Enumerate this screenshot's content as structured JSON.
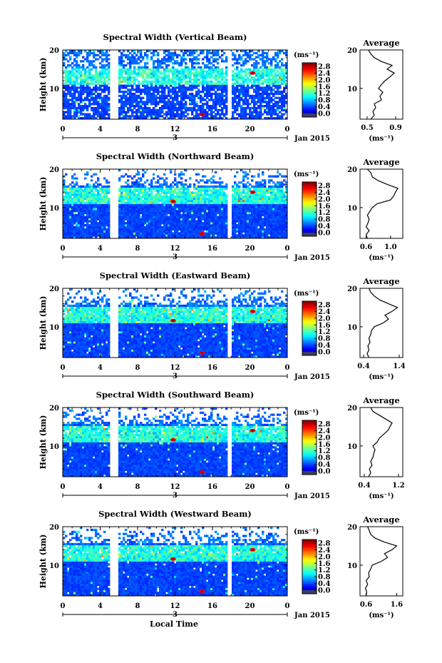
{
  "figure": {
    "xlabel": "Local Time"
  },
  "chart_data": [
    {
      "type": "heatmap",
      "title": "Spectral Width (Vertical Beam)",
      "ylabel": "Height (km)",
      "x_ticks": [
        "0",
        "4",
        "8",
        "12",
        "16",
        "20",
        "0"
      ],
      "y_ticks": [
        "10",
        "20"
      ],
      "xlim": [
        0,
        24
      ],
      "ylim": [
        2,
        20
      ],
      "date_day": "3",
      "date_label": "Jan 2015",
      "colorbar": {
        "unit": "(ms⁻¹)",
        "ticks": [
          "0.0",
          "0.4",
          "0.8",
          "1.2",
          "1.6",
          "2.0",
          "2.4",
          "2.8"
        ],
        "range": [
          0,
          3.0
        ]
      },
      "data_gaps_hours": [
        [
          5.0,
          5.9
        ],
        [
          17.6,
          18.1
        ]
      ],
      "profile": {
        "title": "Average",
        "xlabel": "(ms⁻¹)",
        "x_ticks": [
          "0.5",
          "0.9"
        ],
        "xlim": [
          0.4,
          1.0
        ],
        "heights": [
          2,
          3,
          4,
          5,
          6,
          7,
          8,
          9,
          10,
          11,
          12,
          13,
          14,
          15,
          16,
          17,
          18,
          19,
          20
        ],
        "values": [
          0.55,
          0.6,
          0.58,
          0.62,
          0.6,
          0.7,
          0.68,
          0.72,
          0.66,
          0.7,
          0.75,
          0.82,
          0.88,
          0.78,
          0.85,
          0.7,
          0.6,
          0.55,
          0.52
        ]
      }
    },
    {
      "type": "heatmap",
      "title": "Spectral Width (Northward Beam)",
      "ylabel": "Height (km)",
      "x_ticks": [
        "0",
        "4",
        "8",
        "12",
        "16",
        "20",
        "0"
      ],
      "y_ticks": [
        "10",
        "20"
      ],
      "xlim": [
        0,
        24
      ],
      "ylim": [
        2,
        20
      ],
      "date_day": "3",
      "date_label": "Jan 2015",
      "colorbar": {
        "unit": "(ms⁻¹)",
        "ticks": [
          "0.0",
          "0.4",
          "0.8",
          "1.2",
          "1.6",
          "2.0",
          "2.4",
          "2.8"
        ],
        "range": [
          0,
          3.0
        ]
      },
      "data_gaps_hours": [
        [
          5.0,
          5.9
        ],
        [
          17.6,
          18.1
        ]
      ],
      "profile": {
        "title": "Average",
        "xlabel": "(ms⁻¹)",
        "x_ticks": [
          "0.6",
          "1.0"
        ],
        "xlim": [
          0.5,
          1.2
        ],
        "heights": [
          2,
          3,
          4,
          5,
          6,
          7,
          8,
          9,
          10,
          11,
          12,
          13,
          14,
          15,
          16,
          17,
          18,
          19,
          20
        ],
        "values": [
          0.62,
          0.6,
          0.65,
          0.6,
          0.63,
          0.65,
          0.62,
          0.66,
          0.7,
          0.78,
          1.0,
          1.05,
          1.08,
          1.12,
          0.95,
          0.8,
          0.7,
          0.68,
          0.62
        ]
      }
    },
    {
      "type": "heatmap",
      "title": "Spectral Width (Eastward Beam)",
      "ylabel": "Height (km)",
      "x_ticks": [
        "0",
        "4",
        "8",
        "12",
        "16",
        "20",
        "0"
      ],
      "y_ticks": [
        "10",
        "20"
      ],
      "xlim": [
        0,
        24
      ],
      "ylim": [
        2,
        20
      ],
      "date_day": "3",
      "date_label": "Jan 2015",
      "colorbar": {
        "unit": "(ms⁻¹)",
        "ticks": [
          "0.0",
          "0.4",
          "0.8",
          "1.2",
          "1.6",
          "2.0",
          "2.4",
          "2.8"
        ],
        "range": [
          0,
          3.0
        ]
      },
      "data_gaps_hours": [
        [
          5.0,
          5.9
        ],
        [
          17.6,
          18.1
        ]
      ],
      "profile": {
        "title": "Average",
        "xlabel": "(ms⁻¹)",
        "x_ticks": [
          "0.4",
          "1.4"
        ],
        "xlim": [
          0.3,
          1.5
        ],
        "heights": [
          2,
          3,
          4,
          5,
          6,
          7,
          8,
          9,
          10,
          11,
          12,
          13,
          14,
          15,
          16,
          17,
          18,
          19,
          20
        ],
        "values": [
          0.55,
          0.5,
          0.55,
          0.52,
          0.58,
          0.55,
          0.6,
          0.62,
          0.7,
          0.95,
          1.1,
          1.0,
          1.2,
          1.35,
          1.1,
          0.85,
          0.7,
          0.6,
          0.55
        ]
      }
    },
    {
      "type": "heatmap",
      "title": "Spectral Width (Southward Beam)",
      "ylabel": "Height (km)",
      "x_ticks": [
        "0",
        "4",
        "8",
        "12",
        "16",
        "20",
        "0"
      ],
      "y_ticks": [
        "10",
        "20"
      ],
      "xlim": [
        0,
        24
      ],
      "ylim": [
        2,
        20
      ],
      "date_day": "3",
      "date_label": "Jan 2015",
      "colorbar": {
        "unit": "(ms⁻¹)",
        "ticks": [
          "0.0",
          "0.4",
          "0.8",
          "1.2",
          "1.6",
          "2.0",
          "2.4",
          "2.8"
        ],
        "range": [
          0,
          3.0
        ]
      },
      "data_gaps_hours": [
        [
          5.0,
          5.9
        ],
        [
          17.6,
          18.1
        ]
      ],
      "profile": {
        "title": "Average",
        "xlabel": "(ms⁻¹)",
        "x_ticks": [
          "0.4",
          "1.2"
        ],
        "xlim": [
          0.3,
          1.3
        ],
        "heights": [
          2,
          3,
          4,
          5,
          6,
          7,
          8,
          9,
          10,
          11,
          12,
          13,
          14,
          15,
          16,
          17,
          18,
          19,
          20
        ],
        "values": [
          0.5,
          0.55,
          0.52,
          0.58,
          0.55,
          0.6,
          0.62,
          0.65,
          0.6,
          0.7,
          0.75,
          0.85,
          0.95,
          1.0,
          1.05,
          0.9,
          0.75,
          0.6,
          0.55
        ]
      }
    },
    {
      "type": "heatmap",
      "title": "Spectral Width (Westward Beam)",
      "ylabel": "Height (km)",
      "x_ticks": [
        "0",
        "4",
        "8",
        "12",
        "16",
        "20",
        "0"
      ],
      "y_ticks": [
        "10",
        "20"
      ],
      "xlim": [
        0,
        24
      ],
      "ylim": [
        2,
        20
      ],
      "date_day": "3",
      "date_label": "Jan 2015",
      "colorbar": {
        "unit": "(ms⁻¹)",
        "ticks": [
          "0.0",
          "0.4",
          "0.8",
          "1.2",
          "1.6",
          "2.0",
          "2.4",
          "2.8"
        ],
        "range": [
          0,
          3.0
        ]
      },
      "data_gaps_hours": [
        [
          5.0,
          5.9
        ],
        [
          17.6,
          18.1
        ]
      ],
      "profile": {
        "title": "Average",
        "xlabel": "(ms⁻¹)",
        "x_ticks": [
          "0.6",
          "1.6"
        ],
        "xlim": [
          0.4,
          1.8
        ],
        "heights": [
          2,
          3,
          4,
          5,
          6,
          7,
          8,
          9,
          10,
          11,
          12,
          13,
          14,
          15,
          16,
          17,
          18,
          19,
          20
        ],
        "values": [
          0.6,
          0.62,
          0.58,
          0.65,
          0.6,
          0.7,
          0.68,
          0.75,
          0.8,
          1.1,
          1.3,
          1.2,
          1.45,
          1.6,
          1.2,
          0.9,
          0.75,
          0.7,
          0.65
        ]
      }
    }
  ]
}
